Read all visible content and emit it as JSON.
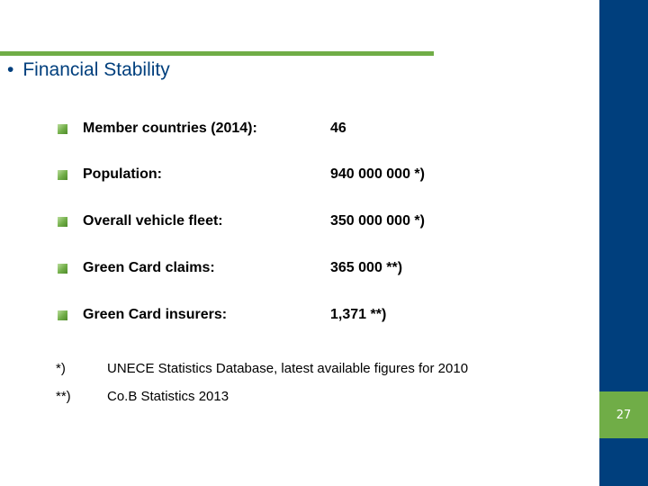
{
  "slide": {
    "title_bullet": "•",
    "title": "Financial Stability",
    "page_number": "27"
  },
  "stats": [
    {
      "label": "Member countries (2014):",
      "value": "46"
    },
    {
      "label": "Population:",
      "value": "940 000 000 *)"
    },
    {
      "label": "Overall vehicle fleet:",
      "value": "350 000 000 *)"
    },
    {
      "label": "Green Card claims:",
      "value": "365 000 **)"
    },
    {
      "label": "Green Card insurers:",
      "value": "1,371 **)"
    }
  ],
  "notes": [
    {
      "mark": "*)",
      "text": "UNECE Statistics Database, latest available figures for 2010"
    },
    {
      "mark": "**)",
      "text": "Co.B Statistics 2013"
    }
  ],
  "colors": {
    "accent_green": "#70ad47",
    "sidebar_blue": "#003f7d",
    "title_blue": "#003f7d"
  }
}
